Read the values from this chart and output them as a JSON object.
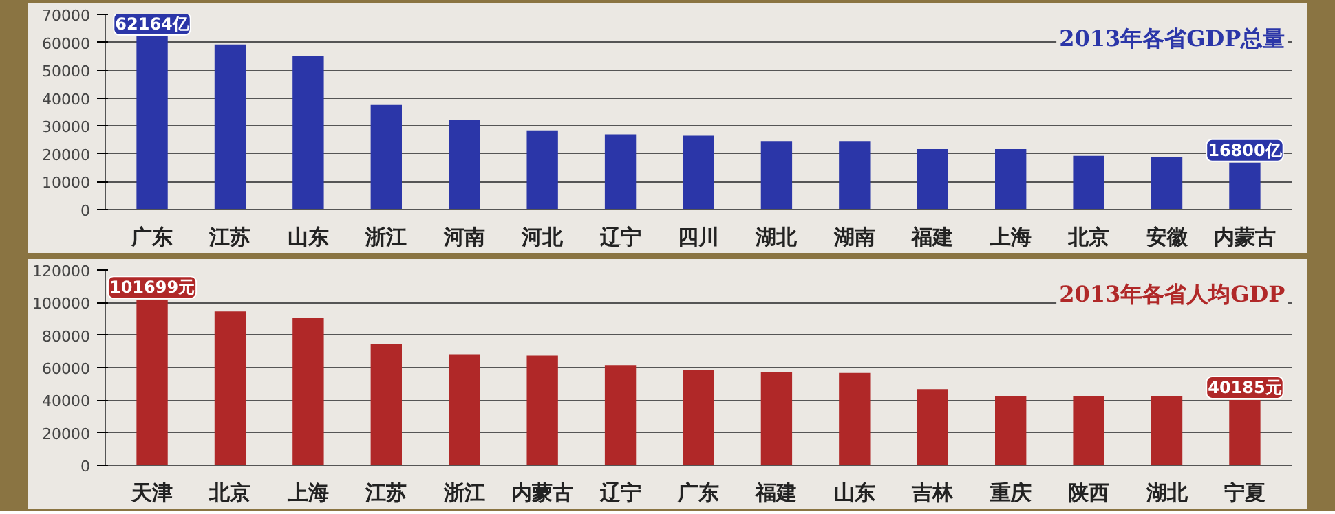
{
  "chart_data": [
    {
      "type": "bar",
      "title": "2013年各省GDP总量",
      "categories": [
        "广东",
        "江苏",
        "山东",
        "浙江",
        "河南",
        "河北",
        "辽宁",
        "四川",
        "湖北",
        "湖南",
        "福建",
        "上海",
        "北京",
        "安徽",
        "内蒙古"
      ],
      "values": [
        62164,
        59200,
        55000,
        37500,
        32200,
        28400,
        27000,
        26500,
        24600,
        24600,
        21700,
        21700,
        19300,
        18800,
        16800
      ],
      "value_labels": [
        "62164亿",
        null,
        null,
        null,
        null,
        null,
        null,
        null,
        null,
        null,
        null,
        null,
        null,
        null,
        "16800亿"
      ],
      "color": "#2b36a8",
      "ylim": [
        0,
        70000
      ],
      "yticks": [
        0,
        10000,
        20000,
        30000,
        40000,
        50000,
        60000,
        70000
      ],
      "grid": "y"
    },
    {
      "type": "bar",
      "title": "2013年各省人均GDP",
      "categories": [
        "天津",
        "北京",
        "上海",
        "江苏",
        "浙江",
        "内蒙古",
        "辽宁",
        "广东",
        "福建",
        "山东",
        "吉林",
        "重庆",
        "陕西",
        "湖北",
        "宁夏"
      ],
      "values": [
        101699,
        94500,
        90400,
        74800,
        68200,
        67400,
        61600,
        58300,
        57500,
        56700,
        46800,
        42700,
        42700,
        42700,
        40185
      ],
      "value_labels": [
        "101699元",
        null,
        null,
        null,
        null,
        null,
        null,
        null,
        null,
        null,
        null,
        null,
        null,
        null,
        "40185元"
      ],
      "color": "#b02828",
      "ylim": [
        0,
        120000
      ],
      "yticks": [
        0,
        20000,
        40000,
        60000,
        80000,
        100000,
        120000
      ],
      "grid": "y"
    }
  ]
}
